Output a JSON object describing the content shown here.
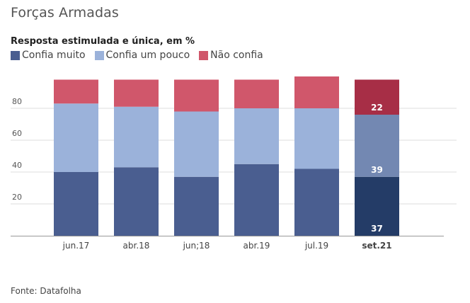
{
  "title": "Forças Armadas",
  "subtitle": "Resposta estimulada e única, em %",
  "source": "Fonte: Datafolha",
  "legend": [
    {
      "label": "Confia muito",
      "color": "#4a5e90"
    },
    {
      "label": "Confia um pouco",
      "color": "#9bb2da"
    },
    {
      "label": "Não confia",
      "color": "#d0576b"
    }
  ],
  "highlight_colors": {
    "Confia muito": "#243c67",
    "Confia um pouco": "#7388b2",
    "Não confia": "#a72e46"
  },
  "chart_data": {
    "type": "bar",
    "stacked": true,
    "title": "Forças Armadas",
    "subtitle": "Resposta estimulada e única, em %",
    "xlabel": "",
    "ylabel": "",
    "ylim": [
      0,
      100
    ],
    "yticks": [
      20,
      40,
      60,
      80
    ],
    "grid": true,
    "legend_position": "top-left",
    "categories": [
      "jun.17",
      "abr.18",
      "jun;18",
      "abr.19",
      "jul.19",
      "set.21"
    ],
    "series": [
      {
        "name": "Confia muito",
        "values": [
          40,
          43,
          37,
          45,
          42,
          37
        ]
      },
      {
        "name": "Confia um pouco",
        "values": [
          43,
          38,
          41,
          35,
          38,
          39
        ]
      },
      {
        "name": "Não confia",
        "values": [
          15,
          17,
          20,
          18,
          20,
          22
        ]
      }
    ],
    "highlighted_category": "set.21",
    "data_labels": {
      "set.21": [
        37,
        39,
        22
      ]
    }
  }
}
